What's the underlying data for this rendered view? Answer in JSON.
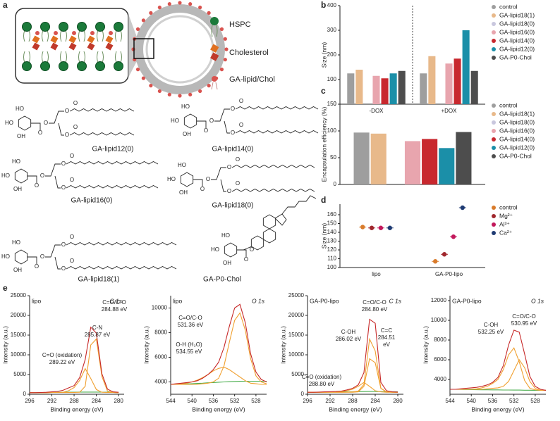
{
  "panel_labels": [
    "a",
    "b",
    "c",
    "d",
    "e"
  ],
  "schematic": {
    "legend": [
      "HSPC",
      "Cholesterol",
      "GA-lipid/Chol"
    ]
  },
  "atom_labels": [
    "HO",
    "OH",
    "O"
  ],
  "structures": [
    "GA-lipid12(0)",
    "GA-lipid14(0)",
    "GA-lipid16(0)",
    "GA-lipid18(0)",
    "GA-lipid18(1)",
    "GA-P0-Chol"
  ],
  "chart_data": [
    {
      "type": "bar",
      "ylabel": "Size (nm)",
      "categories": [
        "-DOX",
        "+DOX"
      ],
      "separator": true,
      "ylim": [
        0,
        400
      ],
      "yticks": [
        0,
        100,
        200,
        300,
        400
      ],
      "series": [
        {
          "name": "control",
          "color": "#9e9e9e",
          "values": [
            125,
            125
          ]
        },
        {
          "name": "GA-lipid18(1)",
          "color": "#e8b98a",
          "values": [
            140,
            195
          ]
        },
        {
          "name": "GA-lipid18(0)",
          "color": "#c9c7de",
          "values": [
            0,
            0
          ]
        },
        {
          "name": "GA-lipid16(0)",
          "color": "#e8a5ae",
          "values": [
            115,
            165
          ]
        },
        {
          "name": "GA-lipid14(0)",
          "color": "#c8282e",
          "values": [
            105,
            185
          ]
        },
        {
          "name": "GA-lipid12(0)",
          "color": "#1b8fa8",
          "values": [
            125,
            300
          ]
        },
        {
          "name": "GA-P0-Chol",
          "color": "#4d4d4d",
          "values": [
            135,
            135
          ]
        }
      ]
    },
    {
      "type": "bar",
      "ylabel": "Encapsulation efficiency (%)",
      "ylim": [
        0,
        150
      ],
      "yticks": [
        0,
        50,
        100,
        150
      ],
      "series": [
        {
          "name": "control",
          "color": "#9e9e9e",
          "values": [
            97
          ]
        },
        {
          "name": "GA-lipid18(1)",
          "color": "#e8b98a",
          "values": [
            95
          ]
        },
        {
          "name": "GA-lipid18(0)",
          "color": "#c9c7de",
          "values": [
            0
          ]
        },
        {
          "name": "GA-lipid16(0)",
          "color": "#e8a5ae",
          "values": [
            81
          ]
        },
        {
          "name": "GA-lipid14(0)",
          "color": "#c8282e",
          "values": [
            85
          ]
        },
        {
          "name": "GA-lipid12(0)",
          "color": "#1b8fa8",
          "values": [
            68
          ]
        },
        {
          "name": "GA-P0-Chol",
          "color": "#4d4d4d",
          "values": [
            98
          ]
        }
      ]
    },
    {
      "type": "dot",
      "ylabel": "Size (nm)",
      "categories": [
        "lipo",
        "GA-P0-lipo"
      ],
      "ylim": [
        100,
        172
      ],
      "yticks": [
        100,
        110,
        120,
        130,
        140,
        150,
        160
      ],
      "series": [
        {
          "name": "control",
          "color": "#d97b2b",
          "values": [
            146,
            107
          ]
        },
        {
          "name": "Mg²⁺",
          "color": "#a0272d",
          "values": [
            145,
            115
          ]
        },
        {
          "name": "Al³⁺",
          "color": "#c2185b",
          "values": [
            145,
            135
          ]
        },
        {
          "name": "Ca²⁺",
          "color": "#1f3b73",
          "values": [
            145,
            168
          ]
        }
      ]
    },
    {
      "type": "line",
      "sample": "lipo",
      "region": "C 1s",
      "xlabel": "Binding energy (eV)",
      "ylabel": "Intensity (a.u.)",
      "x": [
        296,
        295,
        294,
        293,
        292,
        291,
        290,
        289,
        288,
        287,
        286,
        285,
        284,
        283,
        282,
        281,
        280
      ],
      "xlim": [
        296,
        279
      ],
      "xticks": [
        296,
        292,
        288,
        284,
        280
      ],
      "ylim": [
        0,
        25000
      ],
      "yticks": [
        0,
        5000,
        10000,
        15000,
        20000,
        25000
      ],
      "series": [
        {
          "color": "#4caf50",
          "values": [
            400,
            400,
            420,
            440,
            460,
            480,
            500,
            520,
            540,
            560,
            560,
            560,
            560,
            540,
            520,
            500,
            480
          ]
        },
        {
          "color": "#f0a030",
          "values": [
            400,
            400,
            400,
            400,
            450,
            450,
            500,
            900,
            1700,
            3500,
            6500,
            4000,
            1200,
            500,
            450,
            450,
            400
          ]
        },
        {
          "color": "#f0a030",
          "values": [
            400,
            400,
            400,
            400,
            450,
            450,
            450,
            450,
            450,
            500,
            2000,
            12500,
            14000,
            4500,
            800,
            450,
            400
          ]
        },
        {
          "color": "#c62828",
          "values": [
            400,
            400,
            450,
            500,
            600,
            700,
            1000,
            1600,
            2200,
            4200,
            8800,
            17000,
            15500,
            5200,
            1300,
            600,
            500
          ]
        }
      ],
      "annotations": [
        [
          "C=O/C-O",
          "284.88 eV"
        ],
        [
          "C-N",
          "285.87 eV"
        ],
        [
          "C=O (oxidation)",
          "289.22 eV"
        ]
      ]
    },
    {
      "type": "line",
      "sample": "lipo",
      "region": "O 1s",
      "xlabel": "Binding energy (eV)",
      "ylabel": "Intensity (a.u.)",
      "x": [
        544,
        543,
        542,
        541,
        540,
        539,
        538,
        537,
        536,
        535,
        534,
        533,
        532,
        531,
        530,
        529,
        528,
        527,
        526
      ],
      "xlim": [
        544,
        526
      ],
      "xticks": [
        544,
        540,
        536,
        532,
        528
      ],
      "ylim": [
        3000,
        11000
      ],
      "yticks": [
        4000,
        6000,
        8000,
        10000
      ],
      "series": [
        {
          "color": "#4caf50",
          "values": [
            3800,
            3810,
            3820,
            3840,
            3860,
            3880,
            3900,
            3930,
            3950,
            3980,
            4000,
            4020,
            4040,
            4050,
            4060,
            4060,
            4060,
            4060,
            4060
          ]
        },
        {
          "color": "#f0a030",
          "values": [
            3800,
            3800,
            3850,
            3900,
            4000,
            4150,
            4350,
            4600,
            4900,
            5100,
            5200,
            5000,
            4700,
            4400,
            4100,
            3900,
            3850,
            3800,
            3800
          ]
        },
        {
          "color": "#f0a030",
          "values": [
            3800,
            3800,
            3800,
            3800,
            3800,
            3800,
            3850,
            3900,
            4000,
            4300,
            5300,
            7200,
            9000,
            9600,
            8200,
            5900,
            4500,
            4000,
            3850
          ]
        },
        {
          "color": "#c62828",
          "values": [
            3800,
            3850,
            3900,
            3950,
            4000,
            4100,
            4300,
            4600,
            5000,
            5600,
            6800,
            8500,
            10000,
            10300,
            8800,
            6300,
            4800,
            4200,
            4000
          ]
        }
      ],
      "annotations": [
        [
          "C=O/C-O",
          "531.36 eV"
        ],
        [
          "O-H (H₂O)",
          "534.55 eV"
        ]
      ]
    },
    {
      "type": "line",
      "sample": "GA-P0-lipo",
      "region": "C 1s",
      "xlabel": "Binding energy (eV)",
      "ylabel": "Intensity (a.u.)",
      "x": [
        296,
        295,
        294,
        293,
        292,
        291,
        290,
        289,
        288,
        287,
        286,
        285,
        284,
        283,
        282,
        281,
        280
      ],
      "xlim": [
        296,
        279
      ],
      "xticks": [
        296,
        292,
        288,
        284,
        280
      ],
      "ylim": [
        0,
        25000
      ],
      "yticks": [
        0,
        5000,
        10000,
        15000,
        20000,
        25000
      ],
      "series": [
        {
          "color": "#4caf50",
          "values": [
            500,
            500,
            520,
            540,
            560,
            580,
            600,
            620,
            640,
            660,
            680,
            700,
            700,
            680,
            660,
            640,
            620
          ]
        },
        {
          "color": "#f0a030",
          "values": [
            500,
            500,
            500,
            500,
            550,
            600,
            700,
            900,
            1300,
            2000,
            3000,
            2000,
            900,
            600,
            500,
            500,
            500
          ]
        },
        {
          "color": "#f0a030",
          "values": [
            500,
            500,
            500,
            500,
            500,
            500,
            500,
            500,
            500,
            600,
            2000,
            9000,
            8000,
            1500,
            600,
            500,
            500
          ]
        },
        {
          "color": "#f0a030",
          "values": [
            500,
            500,
            500,
            500,
            500,
            500,
            500,
            550,
            600,
            800,
            2500,
            14000,
            11000,
            1500,
            600,
            500,
            500
          ]
        },
        {
          "color": "#c62828",
          "values": [
            500,
            500,
            550,
            600,
            650,
            700,
            800,
            1100,
            1500,
            2400,
            5500,
            19000,
            18000,
            3000,
            900,
            600,
            550
          ]
        }
      ],
      "annotations": [
        [
          "C=O/C-O",
          "284.80 eV"
        ],
        [
          "C-OH",
          "286.02 eV"
        ],
        [
          "C=C",
          "284.51",
          "eV"
        ],
        [
          "C=O (oxidation)",
          "288.80 eV"
        ]
      ]
    },
    {
      "type": "line",
      "sample": "GA-P0-lipo",
      "region": "O 1s",
      "xlabel": "Binding energy (eV)",
      "ylabel": "Intensity (a.u.)",
      "x": [
        544,
        543,
        542,
        541,
        540,
        539,
        538,
        537,
        536,
        535,
        534,
        533,
        532,
        531,
        530,
        529,
        528,
        527,
        526
      ],
      "xlim": [
        544,
        526
      ],
      "xticks": [
        544,
        540,
        536,
        532,
        528
      ],
      "ylim": [
        2500,
        12500
      ],
      "yticks": [
        4000,
        6000,
        8000,
        10000,
        12000
      ],
      "series": [
        {
          "color": "#4caf50",
          "values": [
            3000,
            3000,
            2990,
            2980,
            2970,
            2960,
            2950,
            2950,
            2940,
            2940,
            2930,
            2930,
            2920,
            2920,
            2910,
            2910,
            2900,
            2900,
            2900
          ]
        },
        {
          "color": "#f0a030",
          "values": [
            3000,
            3000,
            3000,
            3000,
            3000,
            3000,
            3000,
            3050,
            3100,
            3150,
            3300,
            3800,
            4900,
            6000,
            5200,
            3800,
            3100,
            2900,
            2900
          ]
        },
        {
          "color": "#f0a030",
          "values": [
            3000,
            3000,
            3000,
            3000,
            3000,
            3050,
            3150,
            3300,
            3600,
            4000,
            5000,
            6500,
            7200,
            5800,
            3900,
            3100,
            2950,
            2900,
            2900
          ]
        },
        {
          "color": "#c62828",
          "values": [
            3000,
            3000,
            3050,
            3100,
            3150,
            3200,
            3300,
            3450,
            3700,
            4200,
            5400,
            7500,
            9000,
            8800,
            6600,
            4300,
            3300,
            3000,
            2900
          ]
        }
      ],
      "annotations": [
        [
          "C-OH",
          "532.25 eV"
        ],
        [
          "C=O/C-O",
          "530.95 eV"
        ]
      ]
    }
  ]
}
